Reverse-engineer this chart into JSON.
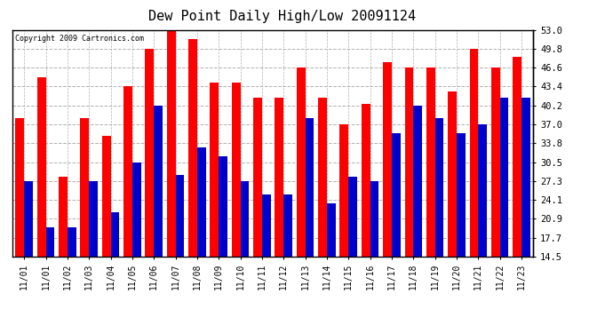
{
  "title": "Dew Point Daily High/Low 20091124",
  "copyright_text": "Copyright 2009 Cartronics.com",
  "dates": [
    "11/01",
    "11/01",
    "11/02",
    "11/03",
    "11/04",
    "11/05",
    "11/06",
    "11/07",
    "11/08",
    "11/09",
    "11/10",
    "11/11",
    "11/12",
    "11/13",
    "11/14",
    "11/15",
    "11/16",
    "11/17",
    "11/18",
    "11/19",
    "11/20",
    "11/21",
    "11/22",
    "11/23"
  ],
  "high_values": [
    38.0,
    45.0,
    28.0,
    38.0,
    35.0,
    43.4,
    49.8,
    53.0,
    51.5,
    44.0,
    44.0,
    41.5,
    41.5,
    46.6,
    41.5,
    37.0,
    40.5,
    47.5,
    46.6,
    46.6,
    42.5,
    49.8,
    46.6,
    48.5
  ],
  "low_values": [
    27.3,
    19.5,
    19.5,
    27.3,
    22.0,
    30.5,
    40.2,
    28.3,
    33.0,
    31.5,
    27.3,
    25.0,
    25.0,
    38.0,
    23.5,
    28.0,
    27.3,
    35.5,
    40.2,
    38.0,
    35.5,
    37.0,
    41.5,
    41.5
  ],
  "high_color": "#ff0000",
  "low_color": "#0000cc",
  "bg_color": "#ffffff",
  "plot_bg_color": "#ffffff",
  "grid_color": "#b0b0b0",
  "title_fontsize": 11,
  "ylabel_right_ticks": [
    14.5,
    17.7,
    20.9,
    24.1,
    27.3,
    30.5,
    33.8,
    37.0,
    40.2,
    43.4,
    46.6,
    49.8,
    53.0
  ],
  "ymin": 14.5,
  "ymax": 53.0
}
